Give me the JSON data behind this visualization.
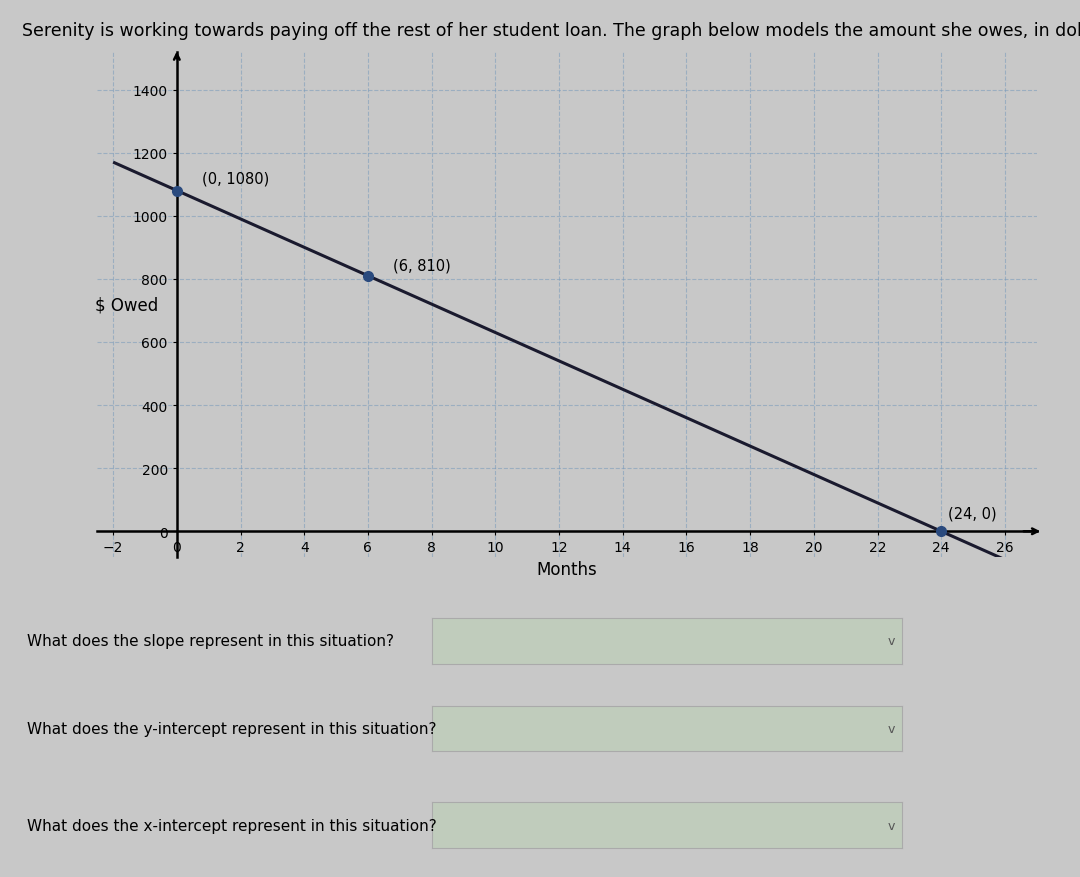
{
  "title": "Serenity is working towards paying off the rest of her student loan. The graph below models the amount she owes, in dollars, for z months.",
  "xlabel": "Months",
  "ylabel": "$ Owed",
  "xlim": [
    -2.5,
    27
  ],
  "ylim": [
    -80,
    1520
  ],
  "xticks": [
    -2,
    0,
    2,
    4,
    6,
    8,
    10,
    12,
    14,
    16,
    18,
    20,
    22,
    24,
    26
  ],
  "yticks": [
    0,
    200,
    400,
    600,
    800,
    1000,
    1200,
    1400
  ],
  "points": [
    [
      0,
      1080
    ],
    [
      6,
      810
    ],
    [
      24,
      0
    ]
  ],
  "point_labels": [
    "(0, 1080)",
    "(6, 810)",
    "(24, 0)"
  ],
  "line_color": "#1a1a2e",
  "point_color": "#2a4a7e",
  "bg_color": "#c8c8c8",
  "grid_color": "#7799bb",
  "grid_style": "--",
  "grid_alpha": 0.55,
  "line_width": 2.2,
  "point_size": 7,
  "title_fontsize": 12.5,
  "label_fontsize": 12,
  "tick_fontsize": 10,
  "annotation_fontsize": 10.5,
  "question1": "What does the slope represent in this situation?",
  "question2": "What does the y-intercept represent in this situation?",
  "question3": "What does the x-intercept represent in this situation?",
  "box_facecolor": "#c0ccbc",
  "box_edgecolor": "#aaaaaa"
}
